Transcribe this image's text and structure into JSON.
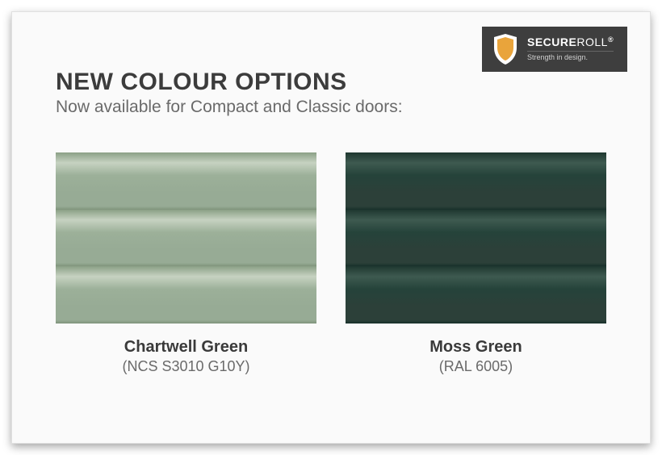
{
  "logo": {
    "brand_bold": "SECURE",
    "brand_light": "ROLL",
    "registered": "®",
    "tagline": "Strength in design.",
    "badge_bg": "#3e3e3e",
    "shield_outer": "#ffffff",
    "shield_inner": "#e9a43b"
  },
  "heading": {
    "title": "NEW COLOUR OPTIONS",
    "subtitle": "Now available for Compact and Classic doors:"
  },
  "swatches": [
    {
      "name": "Chartwell Green",
      "code": "(NCS S3010 G10Y)",
      "base": "#97ab95",
      "highlight": "#c6d2c1",
      "mid": "#9cb099",
      "shadow": "#8ba086",
      "dark": "#7f947b"
    },
    {
      "name": "Moss Green",
      "code": "(RAL 6005)",
      "base": "#2c4039",
      "highlight": "#3e5a50",
      "mid": "#25433a",
      "shadow": "#1f3830",
      "dark": "#18302a"
    }
  ]
}
